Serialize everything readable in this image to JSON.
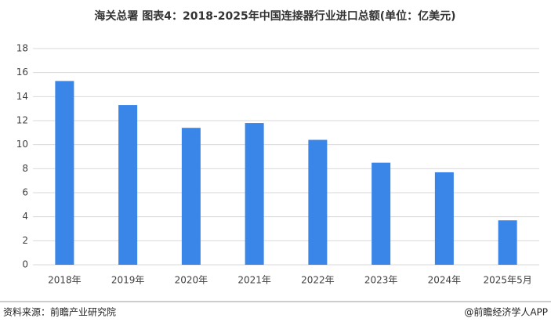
{
  "chart_data": {
    "type": "bar",
    "title": "海关总署 图表4：2018-2025年中国连接器行业进口总额(单位：亿美元)",
    "categories": [
      "2018年",
      "2019年",
      "2020年",
      "2021年",
      "2022年",
      "2023年",
      "2024年",
      "2025年5月"
    ],
    "values": [
      15.3,
      13.3,
      11.4,
      11.8,
      10.4,
      8.5,
      7.7,
      3.7
    ],
    "color": "#3a86e8",
    "ylim": [
      0,
      18
    ],
    "yticks": [
      0,
      2,
      4,
      6,
      8,
      10,
      12,
      14,
      16,
      18
    ],
    "grid": true
  },
  "footer": {
    "source": "资料来源：前瞻产业研究院",
    "credit": "@前瞻经济学人APP"
  }
}
